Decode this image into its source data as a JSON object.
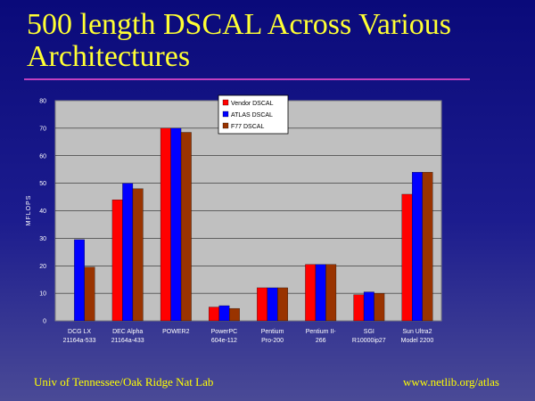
{
  "slide": {
    "title": "500 length DSCAL Across Various Architectures",
    "footer_left": "Univ of Tennessee/Oak Ridge Nat Lab",
    "footer_right": "www.netlib.org/atlas"
  },
  "colors": {
    "background_top": "#0a0a7a",
    "title": "#ffff33",
    "rule": "#c040c0",
    "plot_area": "#c0c0c0",
    "vendor": "#ff0000",
    "atlas": "#0000ff",
    "f77": "#993300"
  },
  "chart_data": {
    "type": "bar",
    "title": "",
    "xlabel": "",
    "ylabel": "MFLOPS",
    "ylim": [
      0,
      80
    ],
    "yticks": [
      0,
      10,
      20,
      30,
      40,
      50,
      60,
      70,
      80
    ],
    "grid": true,
    "legend_position": "top-center",
    "categories": [
      [
        "DCG LX",
        "21164a-533"
      ],
      [
        "DEC Alpha",
        "21164a-433"
      ],
      [
        "POWER2",
        ""
      ],
      [
        "PowerPC",
        "604e-112"
      ],
      [
        "Pentium",
        "Pro-200"
      ],
      [
        "Pentium II-",
        "266"
      ],
      [
        "SGI",
        "R10000ip27"
      ],
      [
        "Sun Ultra2",
        "Model 2200"
      ]
    ],
    "series": [
      {
        "name": "Vendor DSCAL",
        "color": "#ff0000",
        "values": [
          null,
          44,
          70,
          5,
          12,
          20.5,
          9.5,
          46
        ]
      },
      {
        "name": "ATLAS DSCAL",
        "color": "#0000ff",
        "values": [
          29.5,
          50,
          70,
          5.5,
          12,
          20.5,
          10.5,
          54
        ]
      },
      {
        "name": "F77 DSCAL",
        "color": "#993300",
        "values": [
          19.5,
          48,
          68.5,
          4.5,
          12,
          20.5,
          10,
          54
        ]
      }
    ]
  }
}
